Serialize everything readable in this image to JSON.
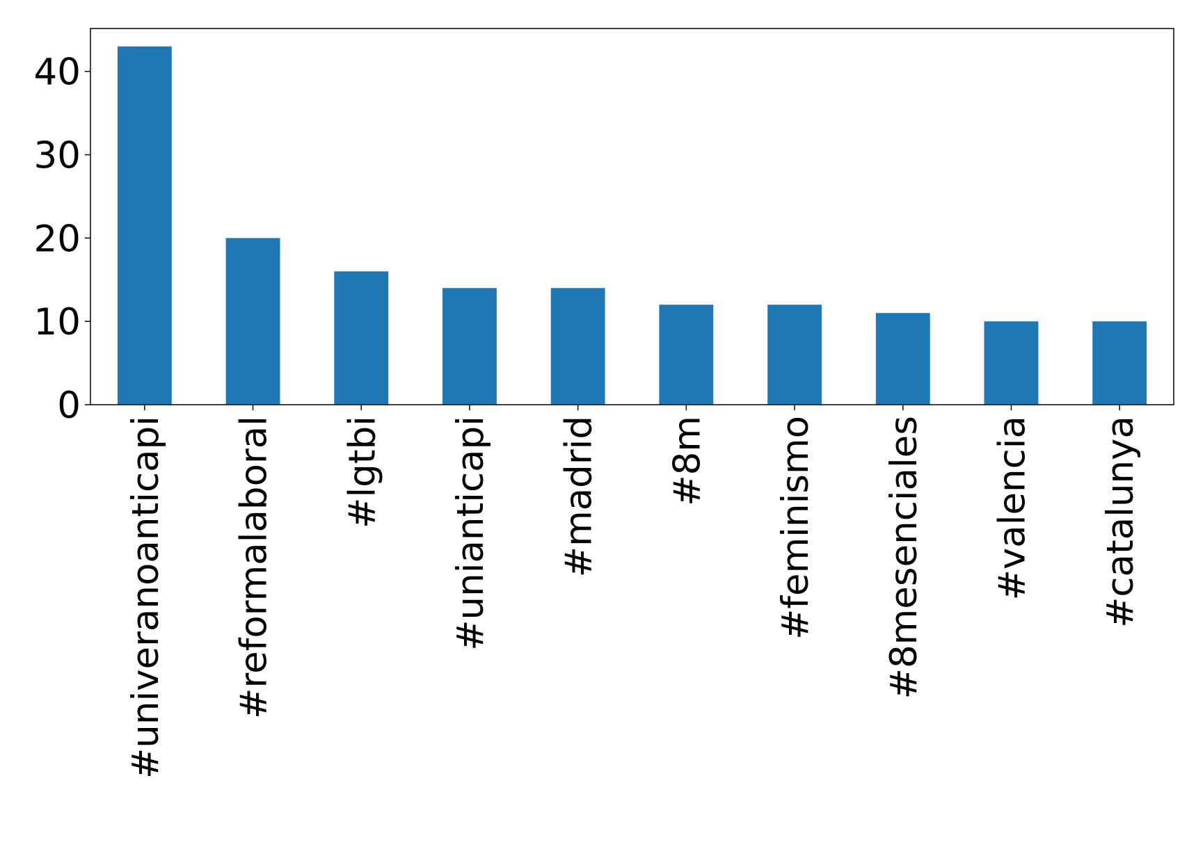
{
  "chart_data": {
    "type": "bar",
    "categories": [
      "#univeranoanticapi",
      "#reformalaboral",
      "#lgtbi",
      "#unianticapi",
      "#madrid",
      "#8m",
      "#feminismo",
      "#8mesenciales",
      "#valencia",
      "#catalunya"
    ],
    "values": [
      43,
      20,
      16,
      14,
      14,
      12,
      12,
      11,
      10,
      10
    ],
    "color": "#1f77b4",
    "ylim": [
      0,
      45.15
    ],
    "yticks": [
      0,
      10,
      20,
      30,
      40
    ],
    "grid": false
  }
}
